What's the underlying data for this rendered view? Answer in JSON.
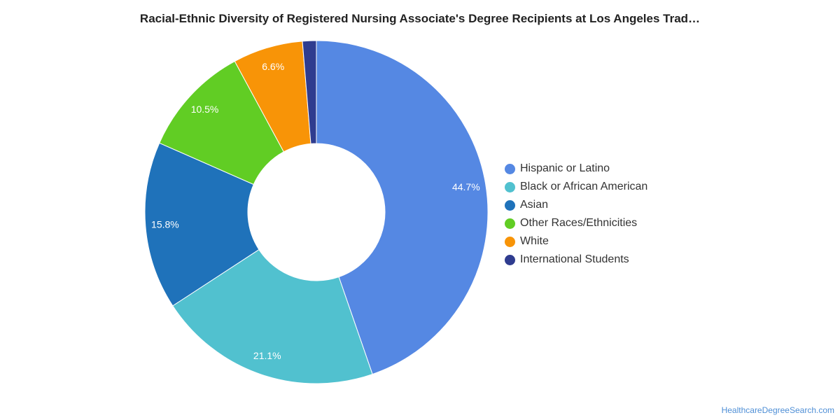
{
  "chart_data": {
    "type": "pie",
    "title": "Racial-Ethnic Diversity of Registered Nursing Associate's Degree Recipients at Los Angeles Trad…",
    "donut": true,
    "legend_position": "right",
    "slices": [
      {
        "label": "Hispanic or Latino",
        "value": 44.7,
        "display": "44.7%",
        "color": "#5588e3"
      },
      {
        "label": "Black or African American",
        "value": 21.1,
        "display": "21.1%",
        "color": "#51c1cf"
      },
      {
        "label": "Asian",
        "value": 15.8,
        "display": "15.8%",
        "color": "#1f72ba"
      },
      {
        "label": "Other Races/Ethnicities",
        "value": 10.5,
        "display": "10.5%",
        "color": "#61cd24"
      },
      {
        "label": "White",
        "value": 6.6,
        "display": "6.6%",
        "color": "#f89407"
      },
      {
        "label": "International Students",
        "value": 1.3,
        "display": "",
        "color": "#2f3c8f"
      }
    ]
  },
  "source": "HealthcareDegreeSearch.com"
}
